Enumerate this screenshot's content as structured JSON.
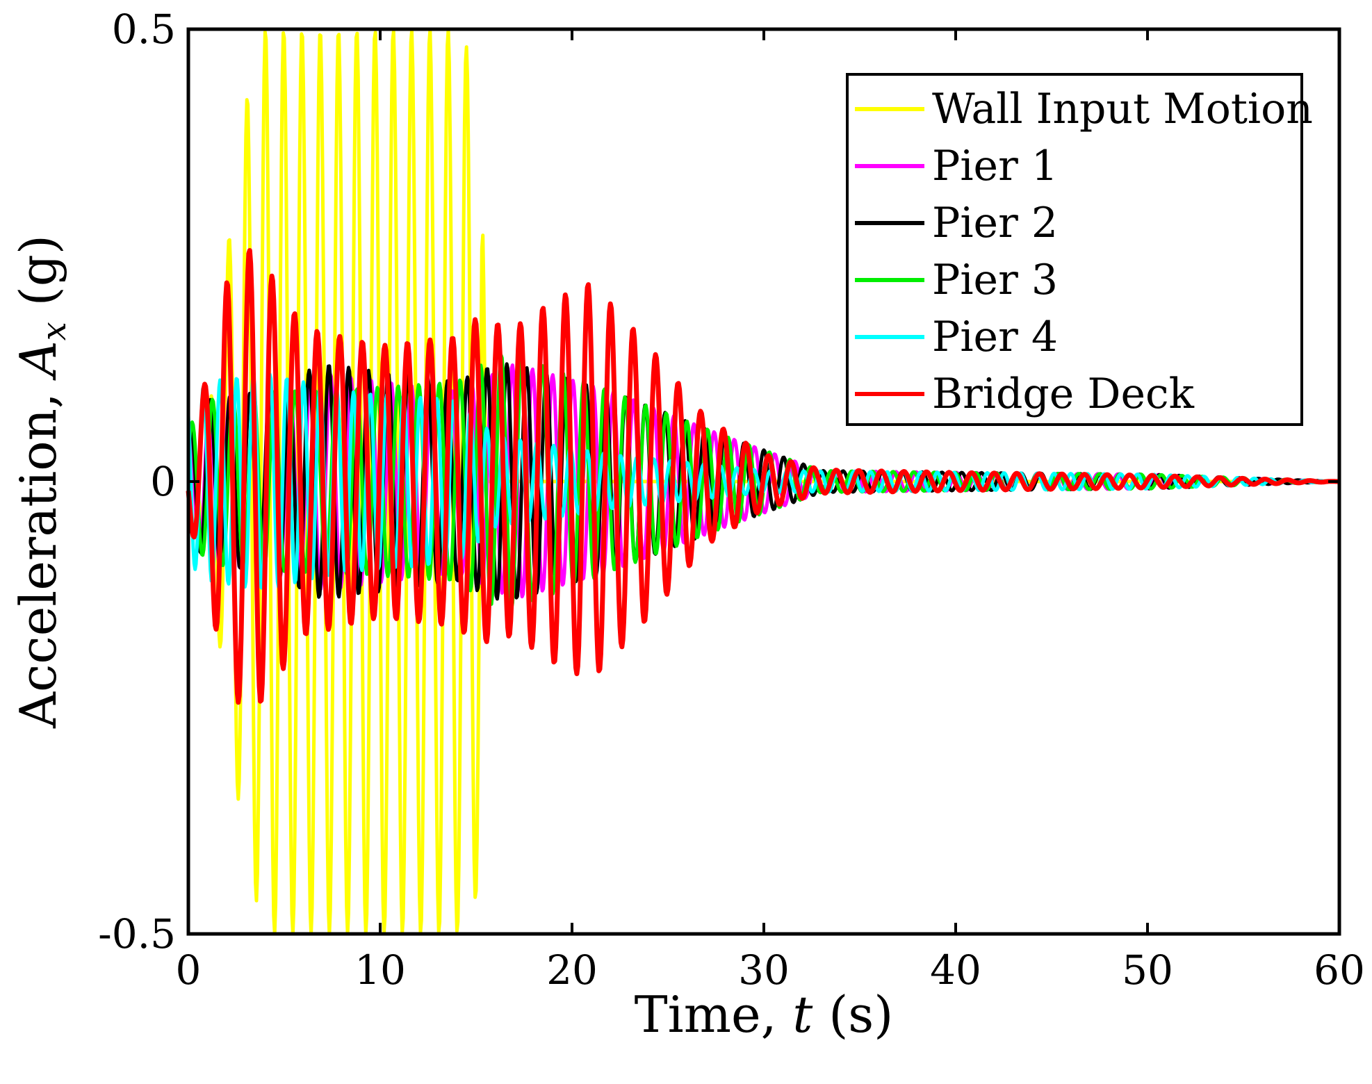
{
  "chart_data": {
    "type": "line",
    "title": "",
    "xlabel": "Time, t (s)",
    "ylabel": "Acceleration, A_x (g)",
    "xlabel_parts": [
      "Time, ",
      "t",
      " (s)"
    ],
    "ylabel_parts": [
      "Acceleration, ",
      "A",
      "x",
      " (g)"
    ],
    "xlim": [
      0,
      60
    ],
    "ylim": [
      -0.5,
      0.5
    ],
    "xticks": [
      0,
      10,
      20,
      30,
      40,
      50,
      60
    ],
    "xtick_labels": [
      "0",
      "10",
      "20",
      "30",
      "40",
      "50",
      "60"
    ],
    "yticks": [
      -0.5,
      0,
      0.5
    ],
    "ytick_labels": [
      "-0.5",
      "0",
      "0.5"
    ],
    "grid": false,
    "legend_position": "top-right",
    "sample_step": 0.05,
    "series": [
      {
        "name": "Wall Input Motion",
        "color": "#ffff00",
        "freq": 1.05,
        "phase": 0.2,
        "envelope": [
          [
            0,
            0
          ],
          [
            1,
            0.06
          ],
          [
            2,
            0.25
          ],
          [
            3,
            0.42
          ],
          [
            4,
            0.5
          ],
          [
            14,
            0.5
          ],
          [
            15.3,
            0.45
          ],
          [
            15.5,
            0
          ],
          [
            60,
            0
          ]
        ]
      },
      {
        "name": "Pier 1",
        "color": "#ff00ff",
        "freq": 0.95,
        "phase": 1.3,
        "envelope": [
          [
            0,
            0.06
          ],
          [
            1,
            0.09
          ],
          [
            4,
            0.1
          ],
          [
            7,
            0.12
          ],
          [
            14,
            0.1
          ],
          [
            16,
            0.12
          ],
          [
            17,
            0.13
          ],
          [
            22,
            0.1
          ],
          [
            28,
            0.05
          ],
          [
            33,
            0.012
          ],
          [
            40,
            0.01
          ],
          [
            50,
            0.008
          ],
          [
            60,
            0
          ]
        ]
      },
      {
        "name": "Pier 2",
        "color": "#000000",
        "freq": 0.97,
        "phase": 0.9,
        "envelope": [
          [
            0,
            0.06
          ],
          [
            1,
            0.09
          ],
          [
            4,
            0.1
          ],
          [
            7,
            0.13
          ],
          [
            14,
            0.11
          ],
          [
            16,
            0.13
          ],
          [
            17,
            0.13
          ],
          [
            22,
            0.1
          ],
          [
            28,
            0.05
          ],
          [
            33,
            0.012
          ],
          [
            40,
            0.01
          ],
          [
            50,
            0.008
          ],
          [
            60,
            0
          ]
        ]
      },
      {
        "name": "Pier 3",
        "color": "#00ee00",
        "freq": 0.93,
        "phase": 0.5,
        "envelope": [
          [
            0,
            0.06
          ],
          [
            1,
            0.09
          ],
          [
            4,
            0.1
          ],
          [
            7,
            0.1
          ],
          [
            14,
            0.11
          ],
          [
            16,
            0.14
          ],
          [
            17,
            0.14
          ],
          [
            22,
            0.1
          ],
          [
            28,
            0.05
          ],
          [
            33,
            0.012
          ],
          [
            40,
            0.01
          ],
          [
            50,
            0.008
          ],
          [
            60,
            0
          ]
        ]
      },
      {
        "name": "Pier 4",
        "color": "#00ffff",
        "freq": 1.15,
        "phase": 2.2,
        "envelope": [
          [
            0,
            0.09
          ],
          [
            1,
            0.11
          ],
          [
            4,
            0.12
          ],
          [
            8,
            0.1
          ],
          [
            14,
            0.09
          ],
          [
            16,
            0.05
          ],
          [
            22,
            0.03
          ],
          [
            30,
            0.012
          ],
          [
            40,
            0.01
          ],
          [
            50,
            0.008
          ],
          [
            60,
            0
          ]
        ]
      },
      {
        "name": "Bridge Deck",
        "color": "#ff0000",
        "freq": 0.85,
        "phase": 3.4,
        "envelope": [
          [
            0,
            0.04
          ],
          [
            1,
            0.12
          ],
          [
            2,
            0.22
          ],
          [
            3,
            0.26
          ],
          [
            4,
            0.24
          ],
          [
            6,
            0.17
          ],
          [
            10,
            0.15
          ],
          [
            14,
            0.16
          ],
          [
            15,
            0.18
          ],
          [
            17,
            0.17
          ],
          [
            19,
            0.2
          ],
          [
            21,
            0.22
          ],
          [
            24,
            0.15
          ],
          [
            27,
            0.07
          ],
          [
            30,
            0.03
          ],
          [
            33,
            0.013
          ],
          [
            40,
            0.01
          ],
          [
            50,
            0.007
          ],
          [
            60,
            0
          ]
        ]
      }
    ]
  }
}
